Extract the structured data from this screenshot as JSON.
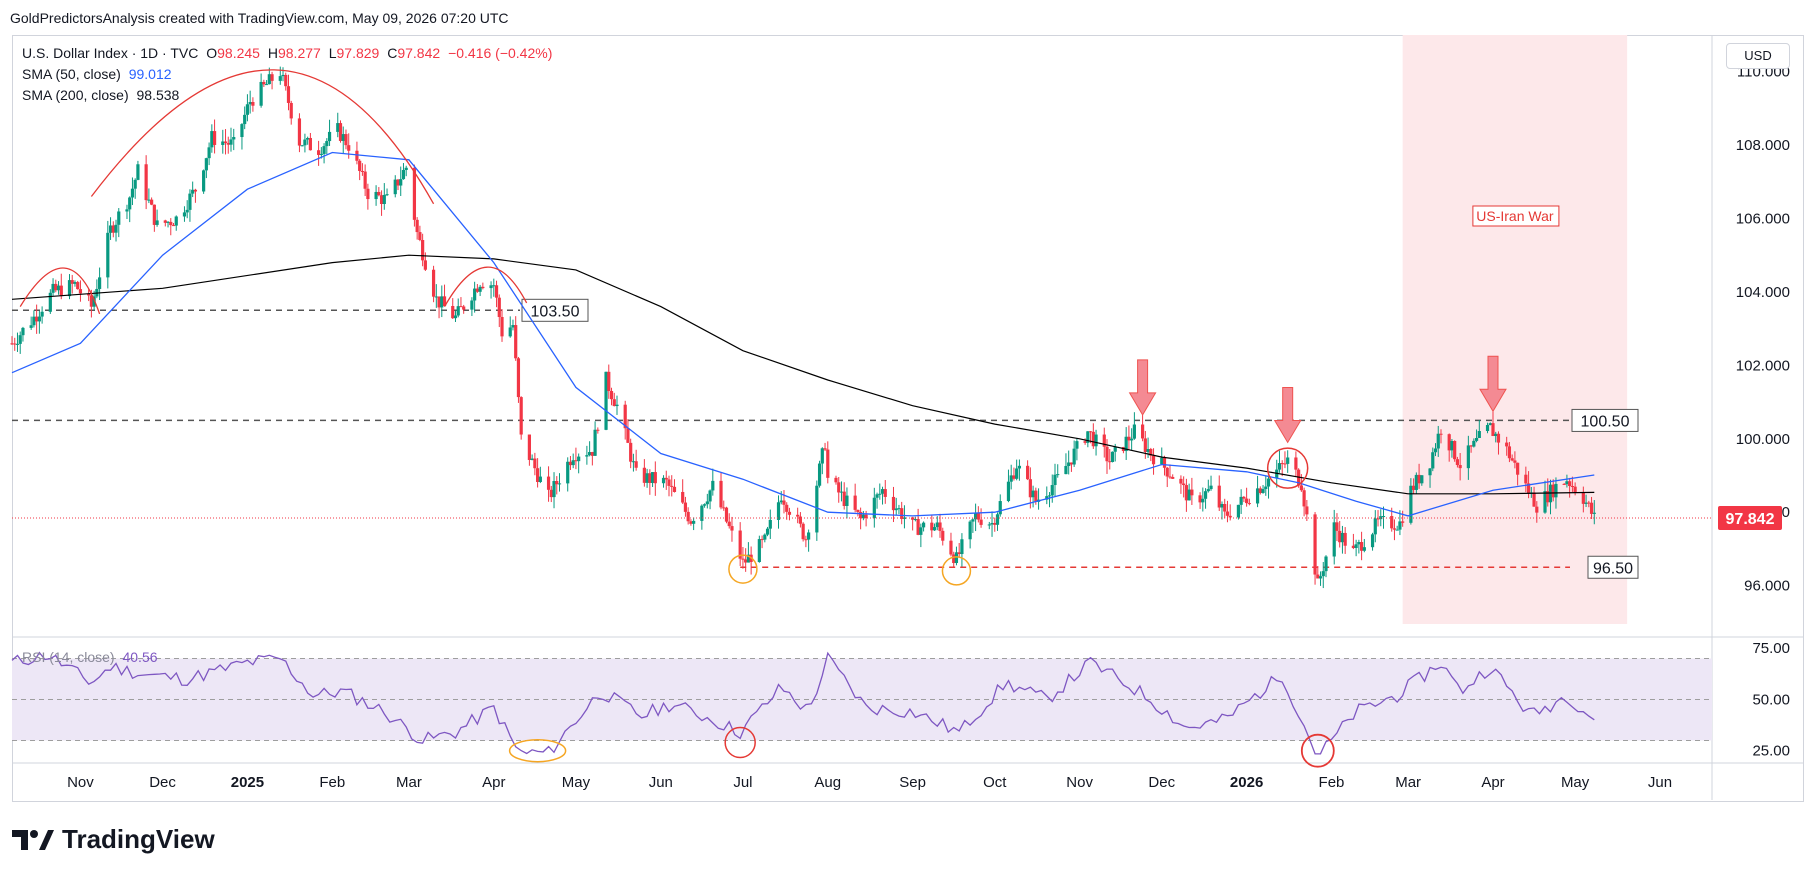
{
  "header": {
    "watermark": "GoldPredictorsAnalysis created with TradingView.com, May 09, 2026 07:20 UTC"
  },
  "legend": {
    "symbol": "U.S. Dollar Index · 1D · TVC",
    "o_label": "O",
    "o": "98.245",
    "h_label": "H",
    "h": "98.277",
    "l_label": "L",
    "l": "97.829",
    "c_label": "C",
    "c": "97.842",
    "change": "−0.416 (−0.42%)",
    "sma50_label": "SMA (50, close)",
    "sma50": "99.012",
    "sma200_label": "SMA (200, close)",
    "sma200": "98.538",
    "rsi_label": "RSI (14, close)",
    "rsi": "40.56"
  },
  "currency_button": "USD",
  "brand": "TradingView",
  "colors": {
    "up": "#089981",
    "down": "#f23645",
    "sma50": "#2962ff",
    "sma200": "#000000",
    "rsi": "#7e57c2",
    "war_zone": "#fde8ea",
    "last_price": "#f23645"
  },
  "chart_data": {
    "type": "candlestick",
    "title": "U.S. Dollar Index · 1D · TVC",
    "y_ticks": [
      "96.000",
      "98.000",
      "100.000",
      "102.000",
      "104.000",
      "106.000",
      "108.000",
      "110.000"
    ],
    "ylim": [
      94.6,
      111.0
    ],
    "x_ticks": [
      "Nov",
      "Dec",
      "2025",
      "Feb",
      "Mar",
      "Apr",
      "May",
      "Jun",
      "Jul",
      "Aug",
      "Sep",
      "Oct",
      "Nov",
      "Dec",
      "2026",
      "Feb",
      "Mar",
      "Apr",
      "May",
      "Jun"
    ],
    "x_range": [
      "2024-10-07",
      "2026-06-20"
    ],
    "last_price_label": "97.842",
    "levels": [
      {
        "value": 103.5,
        "label": "103.50",
        "style": "dashed",
        "color": "#555555"
      },
      {
        "value": 100.5,
        "label": "100.50",
        "style": "dashed",
        "color": "#555555"
      },
      {
        "value": 96.5,
        "label": "96.50",
        "style": "dashed",
        "color": "#e53935"
      }
    ],
    "annotation": {
      "label": "US-Iran War",
      "start": "2026-02-27",
      "end": "2026-05-20"
    },
    "close_path": [
      [
        "2024-10-07",
        102.6
      ],
      [
        "2024-10-15",
        103.3
      ],
      [
        "2024-10-22",
        104.0
      ],
      [
        "2024-10-30",
        104.2
      ],
      [
        "2024-11-05",
        103.6
      ],
      [
        "2024-11-12",
        105.7
      ],
      [
        "2024-11-19",
        106.6
      ],
      [
        "2024-11-22",
        107.3
      ],
      [
        "2024-11-29",
        105.8
      ],
      [
        "2024-12-06",
        106.0
      ],
      [
        "2024-12-13",
        106.8
      ],
      [
        "2024-12-19",
        108.2
      ],
      [
        "2024-12-27",
        108.0
      ],
      [
        "2025-01-02",
        109.2
      ],
      [
        "2025-01-10",
        109.8
      ],
      [
        "2025-01-13",
        110.0
      ],
      [
        "2025-01-20",
        108.1
      ],
      [
        "2025-01-27",
        107.9
      ],
      [
        "2025-02-03",
        108.4
      ],
      [
        "2025-02-07",
        108.0
      ],
      [
        "2025-02-14",
        106.7
      ],
      [
        "2025-02-21",
        106.5
      ],
      [
        "2025-02-28",
        107.4
      ],
      [
        "2025-03-04",
        105.6
      ],
      [
        "2025-03-11",
        103.8
      ],
      [
        "2025-03-18",
        103.3
      ],
      [
        "2025-03-27",
        104.3
      ],
      [
        "2025-04-01",
        104.2
      ],
      [
        "2025-04-04",
        102.9
      ],
      [
        "2025-04-08",
        103.1
      ],
      [
        "2025-04-11",
        100.0
      ],
      [
        "2025-04-21",
        98.4
      ],
      [
        "2025-04-30",
        99.6
      ],
      [
        "2025-05-07",
        99.7
      ],
      [
        "2025-05-12",
        101.6
      ],
      [
        "2025-05-16",
        100.9
      ],
      [
        "2025-05-23",
        99.0
      ],
      [
        "2025-06-03",
        98.8
      ],
      [
        "2025-06-12",
        97.8
      ],
      [
        "2025-06-20",
        98.7
      ],
      [
        "2025-06-30",
        96.8
      ],
      [
        "2025-07-01",
        96.6
      ],
      [
        "2025-07-09",
        97.2
      ],
      [
        "2025-07-15",
        98.5
      ],
      [
        "2025-07-24",
        97.3
      ],
      [
        "2025-07-31",
        99.9
      ],
      [
        "2025-08-01",
        98.9
      ],
      [
        "2025-08-13",
        97.8
      ],
      [
        "2025-08-21",
        98.6
      ],
      [
        "2025-09-01",
        97.6
      ],
      [
        "2025-09-10",
        97.6
      ],
      [
        "2025-09-17",
        96.7
      ],
      [
        "2025-09-24",
        97.9
      ],
      [
        "2025-09-30",
        97.7
      ],
      [
        "2025-10-09",
        99.3
      ],
      [
        "2025-10-16",
        98.3
      ],
      [
        "2025-10-24",
        98.9
      ],
      [
        "2025-11-04",
        100.2
      ],
      [
        "2025-11-12",
        99.4
      ],
      [
        "2025-11-21",
        100.2
      ],
      [
        "2025-11-27",
        99.6
      ],
      [
        "2025-12-05",
        99.0
      ],
      [
        "2025-12-12",
        98.3
      ],
      [
        "2025-12-19",
        98.6
      ],
      [
        "2025-12-24",
        97.9
      ],
      [
        "2026-01-06",
        98.7
      ],
      [
        "2026-01-16",
        99.4
      ],
      [
        "2026-01-21",
        98.8
      ],
      [
        "2026-01-27",
        96.0
      ],
      [
        "2026-02-02",
        97.6
      ],
      [
        "2026-02-09",
        96.9
      ],
      [
        "2026-02-18",
        97.7
      ],
      [
        "2026-02-26",
        97.7
      ],
      [
        "2026-03-02",
        98.6
      ],
      [
        "2026-03-09",
        99.4
      ],
      [
        "2026-03-13",
        100.3
      ],
      [
        "2026-03-20",
        99.3
      ],
      [
        "2026-03-27",
        100.0
      ],
      [
        "2026-03-31",
        100.3
      ],
      [
        "2026-04-06",
        99.7
      ],
      [
        "2026-04-13",
        98.7
      ],
      [
        "2026-04-17",
        98.2
      ],
      [
        "2026-04-24",
        98.7
      ],
      [
        "2026-04-28",
        98.9
      ],
      [
        "2026-05-04",
        98.4
      ],
      [
        "2026-05-08",
        97.842
      ]
    ],
    "sma50": [
      [
        "2024-10-07",
        101.8
      ],
      [
        "2024-11-01",
        102.6
      ],
      [
        "2024-12-01",
        105.0
      ],
      [
        "2025-01-01",
        106.8
      ],
      [
        "2025-02-01",
        107.8
      ],
      [
        "2025-03-01",
        107.6
      ],
      [
        "2025-04-01",
        104.8
      ],
      [
        "2025-05-01",
        101.4
      ],
      [
        "2025-06-01",
        99.6
      ],
      [
        "2025-07-01",
        98.9
      ],
      [
        "2025-08-01",
        98.0
      ],
      [
        "2025-09-01",
        97.9
      ],
      [
        "2025-10-01",
        98.0
      ],
      [
        "2025-11-01",
        98.6
      ],
      [
        "2025-12-01",
        99.3
      ],
      [
        "2026-01-01",
        99.1
      ],
      [
        "2026-01-20",
        98.8
      ],
      [
        "2026-02-10",
        98.3
      ],
      [
        "2026-03-01",
        97.9
      ],
      [
        "2026-04-01",
        98.6
      ],
      [
        "2026-05-08",
        99.012
      ]
    ],
    "sma200": [
      [
        "2024-10-07",
        103.8
      ],
      [
        "2024-12-01",
        104.1
      ],
      [
        "2025-02-01",
        104.8
      ],
      [
        "2025-03-01",
        105.0
      ],
      [
        "2025-04-01",
        104.9
      ],
      [
        "2025-05-01",
        104.6
      ],
      [
        "2025-06-01",
        103.6
      ],
      [
        "2025-07-01",
        102.4
      ],
      [
        "2025-08-01",
        101.6
      ],
      [
        "2025-09-01",
        100.9
      ],
      [
        "2025-10-01",
        100.4
      ],
      [
        "2025-11-01",
        100.0
      ],
      [
        "2025-12-01",
        99.5
      ],
      [
        "2026-01-01",
        99.2
      ],
      [
        "2026-02-01",
        98.8
      ],
      [
        "2026-03-01",
        98.5
      ],
      [
        "2026-04-01",
        98.5
      ],
      [
        "2026-05-08",
        98.538
      ]
    ],
    "rsi_pane": {
      "label": "RSI (14, close)",
      "ticks": [
        "75.00",
        "50.00",
        "25.00"
      ],
      "band": [
        30,
        70
      ],
      "ylim": [
        19,
        80
      ],
      "series": [
        [
          "2024-10-07",
          68
        ],
        [
          "2024-10-20",
          72
        ],
        [
          "2024-11-05",
          58
        ],
        [
          "2024-11-12",
          66
        ],
        [
          "2024-11-25",
          62
        ],
        [
          "2024-12-10",
          60
        ],
        [
          "2025-01-01",
          68
        ],
        [
          "2025-01-13",
          70
        ],
        [
          "2025-01-25",
          52
        ],
        [
          "2025-02-05",
          54
        ],
        [
          "2025-02-20",
          44
        ],
        [
          "2025-03-06",
          30
        ],
        [
          "2025-03-18",
          34
        ],
        [
          "2025-04-01",
          46
        ],
        [
          "2025-04-10",
          24
        ],
        [
          "2025-04-21",
          24
        ],
        [
          "2025-05-10",
          54
        ],
        [
          "2025-05-25",
          42
        ],
        [
          "2025-06-05",
          48
        ],
        [
          "2025-06-20",
          40
        ],
        [
          "2025-06-30",
          34
        ],
        [
          "2025-07-15",
          56
        ],
        [
          "2025-07-25",
          44
        ],
        [
          "2025-08-01",
          70
        ],
        [
          "2025-08-15",
          46
        ],
        [
          "2025-09-01",
          44
        ],
        [
          "2025-09-18",
          34
        ],
        [
          "2025-10-05",
          58
        ],
        [
          "2025-10-20",
          50
        ],
        [
          "2025-11-05",
          68
        ],
        [
          "2025-11-25",
          52
        ],
        [
          "2025-12-10",
          36
        ],
        [
          "2025-12-24",
          40
        ],
        [
          "2026-01-14",
          62
        ],
        [
          "2026-01-27",
          22
        ],
        [
          "2026-02-10",
          44
        ],
        [
          "2026-02-25",
          52
        ],
        [
          "2026-03-13",
          68
        ],
        [
          "2026-03-20",
          54
        ],
        [
          "2026-03-31",
          66
        ],
        [
          "2026-04-15",
          42
        ],
        [
          "2026-04-28",
          52
        ],
        [
          "2026-05-08",
          40.56
        ]
      ]
    }
  }
}
